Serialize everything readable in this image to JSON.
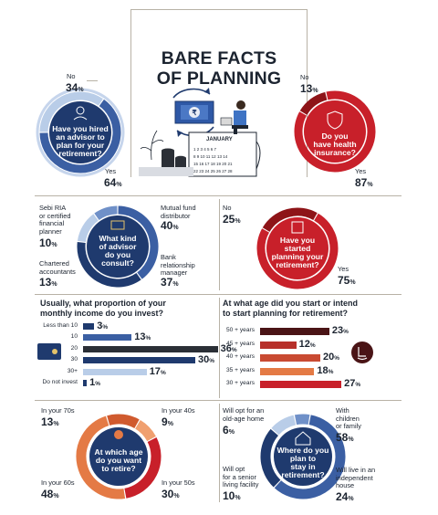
{
  "title_line1": "BARE FACTS",
  "title_line2": "OF PLANNING",
  "calendar_month": "JANUARY",
  "colors": {
    "navy": "#1f3a6e",
    "navy_ring": "#3b5fa3",
    "red": "#c8202a",
    "red_dark": "#8e1418",
    "orange": "#e47a45",
    "light_blue": "#b9cde8",
    "dark_bar": "#2b2f36",
    "maroon": "#4a1416"
  },
  "chart_data": [
    {
      "type": "pie",
      "question": "Have you hired an advisor to plan for your retirement?",
      "categories": [
        "No",
        "Yes"
      ],
      "values": [
        34,
        64
      ]
    },
    {
      "type": "pie",
      "question": "Do you have health insurance?",
      "categories": [
        "No",
        "Yes"
      ],
      "values": [
        13,
        87
      ]
    },
    {
      "type": "pie",
      "question": "What kind of advisor do you consult?",
      "categories": [
        "Sebi RIA or certified financial planner",
        "Chartered accountants",
        "Mutual fund distributor",
        "Bank relationship manager"
      ],
      "values": [
        10,
        13,
        40,
        37
      ]
    },
    {
      "type": "pie",
      "question": "Have you started planning your retirement?",
      "categories": [
        "No",
        "Yes"
      ],
      "values": [
        25,
        75
      ]
    },
    {
      "type": "bar",
      "title": "Usually, what proportion of your monthly income do you invest?",
      "categories": [
        "Less than 10",
        "10",
        "20",
        "30",
        "30+",
        "Do not invest"
      ],
      "values": [
        3,
        13,
        36,
        30,
        17,
        1
      ]
    },
    {
      "type": "bar",
      "title": "At what age did you start or intend to start planning for retirement?",
      "categories": [
        "50 + years",
        "45 + years",
        "40 + years",
        "35 + years",
        "30 + years"
      ],
      "values": [
        23,
        12,
        20,
        18,
        27
      ]
    },
    {
      "type": "pie",
      "question": "At which age do you want to retire?",
      "categories": [
        "In your 70s",
        "In your 40s",
        "In your 60s",
        "In your 50s"
      ],
      "values": [
        13,
        9,
        48,
        30
      ]
    },
    {
      "type": "pie",
      "question": "Where do you plan to stay in retirement?",
      "categories": [
        "Will opt for an old-age home",
        "With children or family",
        "Will opt for a senior living facility",
        "Will live in an independent house"
      ],
      "values": [
        6,
        58,
        10,
        24
      ]
    }
  ],
  "c1": {
    "q": [
      "Have you hired",
      "an advisor to",
      "plan for your",
      "retirement?"
    ],
    "no_label": "No",
    "no_value": "34",
    "yes_label": "Yes",
    "yes_value": "64"
  },
  "c2": {
    "q": [
      "Do you",
      "have health",
      "insurance?"
    ],
    "no_label": "No",
    "no_value": "13",
    "yes_label": "Yes",
    "yes_value": "87"
  },
  "c3": {
    "q": [
      "What kind",
      "of advisor",
      "do you",
      "consult?"
    ],
    "sebi_label": "Sebi RIA\nor certified\nfinancial\nplanner",
    "sebi_value": "10",
    "ca_label": "Chartered\naccountants",
    "ca_value": "13",
    "mf_label": "Mutual fund\ndistributor",
    "mf_value": "40",
    "bank_label": "Bank\nrelationship\nmanager",
    "bank_value": "37"
  },
  "c4": {
    "q": [
      "Have you",
      "started",
      "planning your",
      "retirement?"
    ],
    "no_label": "No",
    "no_value": "25",
    "yes_label": "Yes",
    "yes_value": "75"
  },
  "bars1": {
    "title": "Usually, what proportion of your\nmonthly income do you invest?",
    "unit": "%"
  },
  "bars2": {
    "title": "At what age did you start or intend\nto start planning for retirement?"
  },
  "c5": {
    "q": [
      "At which age",
      "do you want",
      "to retire?"
    ],
    "s70_label": "In your 70s",
    "s70_value": "13",
    "s40_label": "In your 40s",
    "s40_value": "9",
    "s60_label": "In your 60s",
    "s60_value": "48",
    "s50_label": "In your 50s",
    "s50_value": "30"
  },
  "c6": {
    "q": [
      "Where do you",
      "plan to",
      "stay in",
      "retirement?"
    ],
    "old_label": "Will opt for an\nold-age home",
    "old_value": "6",
    "fam_label": "With\nchildren\nor family",
    "fam_value": "58",
    "sen_label": "Will opt\nfor a senior\nliving facility",
    "sen_value": "10",
    "ind_label": "Will live in an\nindependent\nhouse",
    "ind_value": "24"
  },
  "pct": "%"
}
